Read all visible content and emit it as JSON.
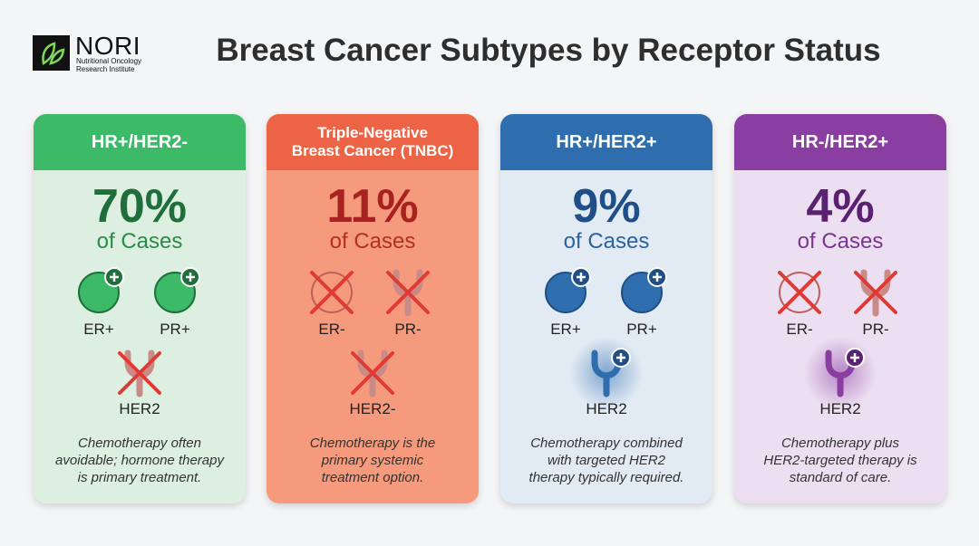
{
  "header": {
    "logo_name": "NORI",
    "logo_subtitle": [
      "Nutritional Oncology",
      "Research Institute"
    ],
    "title": "Breast Cancer Subtypes by Receptor Status"
  },
  "cards": [
    {
      "title": [
        "HR+/HER2-"
      ],
      "percent": "70%",
      "unit": "of Cases",
      "markers": [
        "ER+",
        "PR+",
        "HER2"
      ],
      "note": [
        "Chemotherapy often",
        "avoidable; hormone therapy",
        "is primary treatment."
      ],
      "header_color": "#3dba68",
      "body_color": "#dcefe1",
      "accent_color": "#1f6e3c",
      "unit_color": "#2d8a4b"
    },
    {
      "title": [
        "Triple-Negative",
        "Breast Cancer (TNBC)"
      ],
      "percent": "11%",
      "unit": "of Cases",
      "markers": [
        "ER-",
        "PR-",
        "HER2-"
      ],
      "note": [
        "Chemotherapy is the",
        "primary systemic",
        "treatment option."
      ],
      "header_color": "#ec6445",
      "body_color": "#f59a7c",
      "accent_color": "#a8221f",
      "unit_color": "#b1321f"
    },
    {
      "title": [
        "HR+/HER2+"
      ],
      "percent": "9%",
      "unit": "of Cases",
      "markers": [
        "ER+",
        "PR+",
        "HER2"
      ],
      "note": [
        "Chemotherapy combined",
        "with targeted HER2",
        "therapy typically required."
      ],
      "header_color": "#2f6eae",
      "body_color": "#e2eaf4",
      "accent_color": "#1f4f86",
      "unit_color": "#2b62a0"
    },
    {
      "title": [
        "HR-/HER2+"
      ],
      "percent": "4%",
      "unit": "of Cases",
      "markers": [
        "ER-",
        "PR-",
        "HER2"
      ],
      "note": [
        "Chemotherapy plus",
        "HER2-targeted therapy is",
        "standard of care."
      ],
      "header_color": "#8b3ea2",
      "body_color": "#ecdff1",
      "accent_color": "#5a2171",
      "unit_color": "#7a3590"
    }
  ]
}
